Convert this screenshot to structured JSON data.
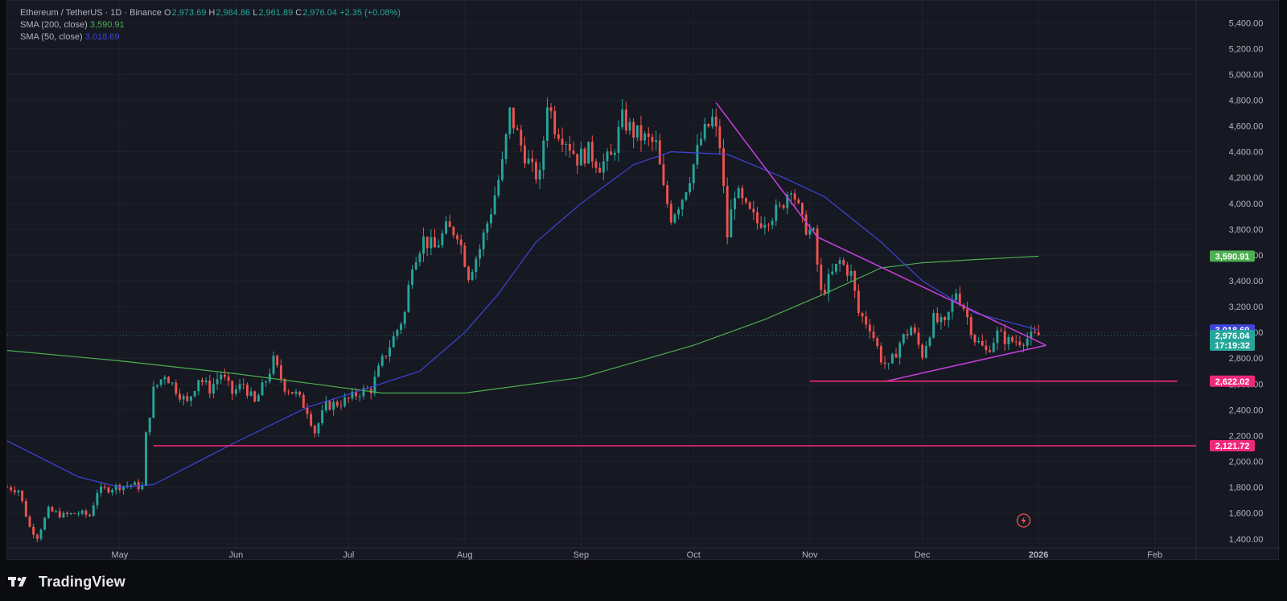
{
  "header": {
    "symbol": "Ethereum / TetherUS · 1D · Binance",
    "ohlc": [
      {
        "k": "O",
        "v": "2,973.69"
      },
      {
        "k": "H",
        "v": "2,984.86"
      },
      {
        "k": "L",
        "v": "2,961.89"
      },
      {
        "k": "C",
        "v": "2,976.04"
      }
    ],
    "change": "+2.35 (+0.08%)",
    "indicators": [
      {
        "label": "SMA (200, close)",
        "value": "3,590.91",
        "color": "#4caf50"
      },
      {
        "label": "SMA (50, close)",
        "value": "3,018.69",
        "color": "#3f45d9"
      }
    ]
  },
  "footer": {
    "brand": "TradingView"
  },
  "colors": {
    "up": "#26a69a",
    "down": "#ef5350",
    "sma200": "#4caf50",
    "sma50": "#3f45d9",
    "triangle": "#c13fd6",
    "support": "#f0287a",
    "background": "#161822",
    "text": "#b2b5be"
  },
  "chart_data": {
    "type": "candlestick",
    "x_axis_labels": [
      {
        "label": "May",
        "date": "2025-05-01"
      },
      {
        "label": "Jun",
        "date": "2025-06-01"
      },
      {
        "label": "Jul",
        "date": "2025-07-01"
      },
      {
        "label": "Aug",
        "date": "2025-08-01"
      },
      {
        "label": "Sep",
        "date": "2025-09-01"
      },
      {
        "label": "Oct",
        "date": "2025-10-01"
      },
      {
        "label": "Nov",
        "date": "2025-11-01"
      },
      {
        "label": "Dec",
        "date": "2025-12-01"
      },
      {
        "label": "2026",
        "date": "2026-01-01"
      },
      {
        "label": "Feb",
        "date": "2026-02-01"
      }
    ],
    "x_range": [
      "2025-04-01",
      "2026-02-12"
    ],
    "y_ticks": [
      "1,400.00",
      "1,600.00",
      "1,800.00",
      "2,000.00",
      "2,200.00",
      "2,400.00",
      "2,600.00",
      "2,800.00",
      "3,000.00",
      "3,200.00",
      "3,400.00",
      "3,600.00",
      "3,800.00",
      "4,000.00",
      "4,200.00",
      "4,400.00",
      "4,600.00",
      "4,800.00",
      "5,000.00",
      "5,200.00",
      "5,400.00"
    ],
    "y_range": [
      1330,
      5570
    ],
    "price_path": [
      [
        "2025-04-01",
        1800
      ],
      [
        "2025-04-04",
        1780
      ],
      [
        "2025-04-07",
        1490
      ],
      [
        "2025-04-09",
        1420
      ],
      [
        "2025-04-12",
        1620
      ],
      [
        "2025-04-16",
        1580
      ],
      [
        "2025-04-20",
        1600
      ],
      [
        "2025-04-23",
        1580
      ],
      [
        "2025-04-25",
        1770
      ],
      [
        "2025-04-28",
        1790
      ],
      [
        "2025-05-01",
        1810
      ],
      [
        "2025-05-04",
        1820
      ],
      [
        "2025-05-07",
        1800
      ],
      [
        "2025-05-08",
        2200
      ],
      [
        "2025-05-10",
        2550
      ],
      [
        "2025-05-13",
        2680
      ],
      [
        "2025-05-16",
        2560
      ],
      [
        "2025-05-19",
        2450
      ],
      [
        "2025-05-22",
        2650
      ],
      [
        "2025-05-25",
        2560
      ],
      [
        "2025-05-28",
        2680
      ],
      [
        "2025-05-31",
        2530
      ],
      [
        "2025-06-03",
        2600
      ],
      [
        "2025-06-06",
        2450
      ],
      [
        "2025-06-09",
        2630
      ],
      [
        "2025-06-11",
        2780
      ],
      [
        "2025-06-14",
        2580
      ],
      [
        "2025-06-17",
        2520
      ],
      [
        "2025-06-20",
        2400
      ],
      [
        "2025-06-22",
        2230
      ],
      [
        "2025-06-25",
        2430
      ],
      [
        "2025-06-28",
        2450
      ],
      [
        "2025-07-01",
        2480
      ],
      [
        "2025-07-04",
        2540
      ],
      [
        "2025-07-07",
        2560
      ],
      [
        "2025-07-10",
        2780
      ],
      [
        "2025-07-13",
        2960
      ],
      [
        "2025-07-16",
        3150
      ],
      [
        "2025-07-18",
        3550
      ],
      [
        "2025-07-21",
        3720
      ],
      [
        "2025-07-24",
        3650
      ],
      [
        "2025-07-27",
        3800
      ],
      [
        "2025-07-30",
        3780
      ],
      [
        "2025-08-02",
        3450
      ],
      [
        "2025-08-05",
        3650
      ],
      [
        "2025-08-08",
        3950
      ],
      [
        "2025-08-11",
        4300
      ],
      [
        "2025-08-13",
        4700
      ],
      [
        "2025-08-16",
        4450
      ],
      [
        "2025-08-19",
        4250
      ],
      [
        "2025-08-21",
        4200
      ],
      [
        "2025-08-23",
        4800
      ],
      [
        "2025-08-25",
        4600
      ],
      [
        "2025-08-28",
        4500
      ],
      [
        "2025-08-31",
        4350
      ],
      [
        "2025-09-03",
        4400
      ],
      [
        "2025-09-06",
        4300
      ],
      [
        "2025-09-09",
        4350
      ],
      [
        "2025-09-12",
        4650
      ],
      [
        "2025-09-15",
        4550
      ],
      [
        "2025-09-18",
        4500
      ],
      [
        "2025-09-21",
        4450
      ],
      [
        "2025-09-23",
        4100
      ],
      [
        "2025-09-25",
        3900
      ],
      [
        "2025-09-28",
        4050
      ],
      [
        "2025-10-01",
        4300
      ],
      [
        "2025-10-03",
        4500
      ],
      [
        "2025-10-06",
        4650
      ],
      [
        "2025-10-08",
        4450
      ],
      [
        "2025-10-10",
        3750
      ],
      [
        "2025-10-12",
        4100
      ],
      [
        "2025-10-15",
        3950
      ],
      [
        "2025-10-18",
        3850
      ],
      [
        "2025-10-21",
        3900
      ],
      [
        "2025-10-24",
        3950
      ],
      [
        "2025-10-27",
        4150
      ],
      [
        "2025-10-30",
        3850
      ],
      [
        "2025-11-02",
        3750
      ],
      [
        "2025-11-04",
        3300
      ],
      [
        "2025-11-06",
        3400
      ],
      [
        "2025-11-09",
        3550
      ],
      [
        "2025-11-12",
        3450
      ],
      [
        "2025-11-14",
        3150
      ],
      [
        "2025-11-17",
        3050
      ],
      [
        "2025-11-20",
        2800
      ],
      [
        "2025-11-22",
        2720
      ],
      [
        "2025-11-25",
        2920
      ],
      [
        "2025-11-28",
        3040
      ],
      [
        "2025-12-01",
        2830
      ],
      [
        "2025-12-04",
        3100
      ],
      [
        "2025-12-07",
        3050
      ],
      [
        "2025-12-10",
        3320
      ],
      [
        "2025-12-12",
        3200
      ],
      [
        "2025-12-15",
        2950
      ],
      [
        "2025-12-18",
        2850
      ],
      [
        "2025-12-21",
        2990
      ],
      [
        "2025-12-24",
        2930
      ],
      [
        "2025-12-27",
        2940
      ],
      [
        "2025-12-30",
        2960
      ],
      [
        "2026-01-01",
        2976
      ]
    ],
    "series": [
      {
        "name": "SMA (200, close)",
        "points": [
          [
            "2025-04-01",
            2860
          ],
          [
            "2025-05-01",
            2780
          ],
          [
            "2025-06-01",
            2680
          ],
          [
            "2025-06-22",
            2600
          ],
          [
            "2025-07-10",
            2530
          ],
          [
            "2025-08-01",
            2530
          ],
          [
            "2025-09-01",
            2650
          ],
          [
            "2025-10-01",
            2900
          ],
          [
            "2025-10-20",
            3100
          ],
          [
            "2025-11-05",
            3300
          ],
          [
            "2025-11-20",
            3500
          ],
          [
            "2025-12-01",
            3540
          ],
          [
            "2025-12-15",
            3565
          ],
          [
            "2026-01-01",
            3590
          ]
        ]
      },
      {
        "name": "SMA (50, close)",
        "points": [
          [
            "2025-04-01",
            2160
          ],
          [
            "2025-04-20",
            1880
          ],
          [
            "2025-05-01",
            1800
          ],
          [
            "2025-05-10",
            1820
          ],
          [
            "2025-06-01",
            2150
          ],
          [
            "2025-06-20",
            2420
          ],
          [
            "2025-07-01",
            2520
          ],
          [
            "2025-07-20",
            2700
          ],
          [
            "2025-08-01",
            3000
          ],
          [
            "2025-08-10",
            3300
          ],
          [
            "2025-08-20",
            3700
          ],
          [
            "2025-09-01",
            4000
          ],
          [
            "2025-09-15",
            4300
          ],
          [
            "2025-09-25",
            4400
          ],
          [
            "2025-10-10",
            4380
          ],
          [
            "2025-10-25",
            4200
          ],
          [
            "2025-11-05",
            4050
          ],
          [
            "2025-11-20",
            3700
          ],
          [
            "2025-12-01",
            3400
          ],
          [
            "2025-12-15",
            3150
          ],
          [
            "2026-01-01",
            3018
          ]
        ]
      }
    ],
    "annotations": [
      {
        "type": "trendline",
        "from": [
          "2025-10-07",
          4780
        ],
        "to": [
          "2025-11-03",
          3740
        ]
      },
      {
        "type": "trendline",
        "from": [
          "2025-11-03",
          3740
        ],
        "to": [
          "2026-01-03",
          2900
        ]
      },
      {
        "type": "trendline",
        "from": [
          "2025-11-21",
          2620
        ],
        "to": [
          "2026-01-03",
          2900
        ]
      },
      {
        "type": "hline",
        "value": 2622.02,
        "from": "2025-11-01",
        "to": "2026-02-07"
      },
      {
        "type": "hline",
        "value": 2121.72,
        "from": "2025-05-10",
        "to": "2026-02-12"
      }
    ],
    "price_labels": [
      {
        "text": "3,590.91",
        "value": 3590.91,
        "color": "#4caf50"
      },
      {
        "text": "3,018.69",
        "value": 3018.69,
        "color": "#3f45d9"
      },
      {
        "text": "2,976.04",
        "sub": "17:19:32",
        "value": 2976.04,
        "color": "#26a69a"
      },
      {
        "text": "2,622.02",
        "value": 2622.02,
        "color": "#f0287a"
      },
      {
        "text": "2,121.72",
        "value": 2121.72,
        "color": "#f0287a"
      }
    ],
    "current_price": 2976.04
  }
}
